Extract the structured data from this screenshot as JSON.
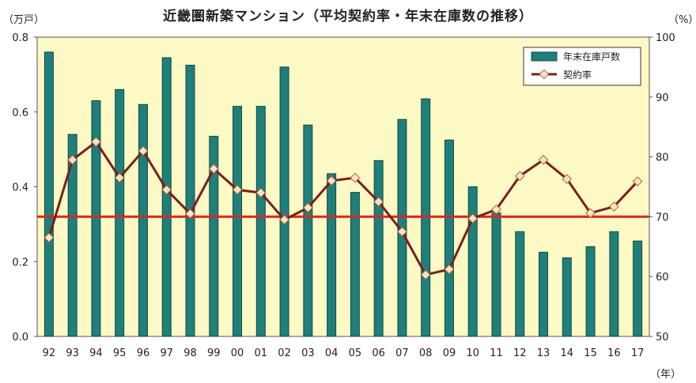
{
  "chart_data": {
    "type": "bar+line",
    "title": "近畿圏新築マンション（平均契約率・年末在庫数の推移）",
    "left_unit": "（万戸）",
    "right_unit": "（%）",
    "x_unit": "（年）",
    "categories": [
      "92",
      "93",
      "94",
      "95",
      "96",
      "97",
      "98",
      "99",
      "00",
      "01",
      "02",
      "03",
      "04",
      "05",
      "06",
      "07",
      "08",
      "09",
      "10",
      "11",
      "12",
      "13",
      "14",
      "15",
      "16",
      "17"
    ],
    "y_left_lim": [
      0,
      0.8
    ],
    "y_left_ticks": [
      "0.0",
      "0.2",
      "0.4",
      "0.6",
      "0.8"
    ],
    "y_right_lim": [
      50,
      100
    ],
    "y_right_ticks": [
      "50",
      "60",
      "70",
      "80",
      "90",
      "100"
    ],
    "series": [
      {
        "name": "年末在庫戸数",
        "kind": "bar",
        "axis": "left",
        "color": "#1f7f7a",
        "values": [
          0.76,
          0.54,
          0.63,
          0.66,
          0.62,
          0.745,
          0.725,
          0.535,
          0.615,
          0.615,
          0.72,
          0.565,
          0.435,
          0.385,
          0.47,
          0.58,
          0.635,
          0.525,
          0.4,
          0.33,
          0.28,
          0.225,
          0.21,
          0.24,
          0.28,
          0.255
        ]
      },
      {
        "name": "契約率",
        "kind": "line",
        "axis": "right",
        "color": "#7a1f1f",
        "values": [
          66.5,
          79.5,
          82.5,
          76.5,
          81.0,
          74.5,
          70.5,
          78.0,
          74.5,
          74.0,
          69.5,
          71.5,
          76.0,
          76.5,
          72.5,
          67.5,
          60.3,
          61.2,
          69.7,
          71.2,
          76.8,
          79.5,
          76.3,
          70.6,
          71.7,
          75.9
        ]
      }
    ],
    "reference_line": {
      "axis": "right",
      "value": 70,
      "color": "#e8231c"
    },
    "plot_background": "#fdf9c4",
    "grid": false,
    "legend_position": "top-right"
  }
}
